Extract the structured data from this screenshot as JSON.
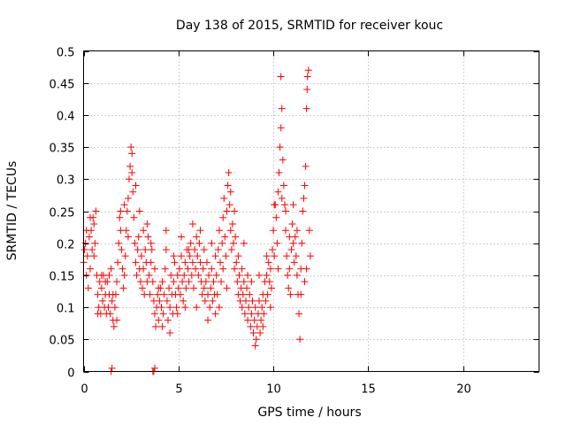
{
  "chart_data": {
    "type": "scatter",
    "title": "Day 138 of 2015, SRMTID for receiver kouc",
    "xlabel": "GPS time / hours",
    "ylabel": "SRMTID / TECUs",
    "xlim": [
      0,
      24
    ],
    "ylim": [
      0,
      0.5
    ],
    "xticks": [
      0,
      5,
      10,
      15,
      20
    ],
    "yticks": [
      0,
      0.05,
      0.1,
      0.15,
      0.2,
      0.25,
      0.3,
      0.35,
      0.4,
      0.45,
      0.5
    ],
    "xtick_labels": [
      "0",
      "5",
      "10",
      "15",
      "20"
    ],
    "ytick_labels": [
      "0",
      "0.05",
      "0.1",
      "0.15",
      "0.2",
      "0.25",
      "0.3",
      "0.35",
      "0.4",
      "0.45",
      "0.5"
    ],
    "grid": true,
    "marker": "+",
    "color": "#ff0000",
    "series": [
      {
        "name": "SRMTID",
        "points": [
          [
            0.0,
            0.17
          ],
          [
            0.05,
            0.19
          ],
          [
            0.1,
            0.2
          ],
          [
            0.15,
            0.15
          ],
          [
            0.2,
            0.18
          ],
          [
            0.25,
            0.13
          ],
          [
            0.3,
            0.21
          ],
          [
            0.35,
            0.16
          ],
          [
            0.4,
            0.22
          ],
          [
            0.45,
            0.19
          ],
          [
            0.5,
            0.24
          ],
          [
            0.55,
            0.18
          ],
          [
            0.6,
            0.2
          ],
          [
            0.65,
            0.25
          ],
          [
            0.7,
            0.15
          ],
          [
            0.75,
            0.12
          ],
          [
            0.8,
            0.1
          ],
          [
            0.85,
            0.14
          ],
          [
            0.9,
            0.09
          ],
          [
            0.95,
            0.13
          ],
          [
            1.0,
            0.11
          ],
          [
            1.05,
            0.15
          ],
          [
            1.1,
            0.1
          ],
          [
            1.15,
            0.12
          ],
          [
            1.2,
            0.09
          ],
          [
            1.25,
            0.14
          ],
          [
            1.3,
            0.1
          ],
          [
            1.35,
            0.12
          ],
          [
            1.4,
            0.09
          ],
          [
            1.45,
            0.16
          ],
          [
            1.5,
            0.11
          ],
          [
            1.55,
            0.08
          ],
          [
            1.6,
            0.07
          ],
          [
            1.65,
            0.1
          ],
          [
            1.7,
            0.12
          ],
          [
            1.75,
            0.14
          ],
          [
            1.8,
            0.17
          ],
          [
            1.85,
            0.2
          ],
          [
            1.9,
            0.24
          ],
          [
            1.95,
            0.22
          ],
          [
            2.0,
            0.19
          ],
          [
            2.05,
            0.16
          ],
          [
            2.1,
            0.13
          ],
          [
            2.15,
            0.15
          ],
          [
            2.2,
            0.18
          ],
          [
            2.25,
            0.22
          ],
          [
            2.3,
            0.25
          ],
          [
            2.35,
            0.27
          ],
          [
            2.4,
            0.3
          ],
          [
            2.45,
            0.32
          ],
          [
            2.5,
            0.35
          ],
          [
            2.55,
            0.31
          ],
          [
            2.6,
            0.28
          ],
          [
            2.65,
            0.24
          ],
          [
            2.7,
            0.2
          ],
          [
            2.75,
            0.17
          ],
          [
            2.8,
            0.15
          ],
          [
            2.85,
            0.19
          ],
          [
            2.9,
            0.21
          ],
          [
            2.95,
            0.16
          ],
          [
            3.0,
            0.14
          ],
          [
            3.05,
            0.18
          ],
          [
            3.1,
            0.13
          ],
          [
            3.15,
            0.16
          ],
          [
            3.2,
            0.12
          ],
          [
            3.25,
            0.19
          ],
          [
            3.3,
            0.17
          ],
          [
            3.35,
            0.14
          ],
          [
            3.4,
            0.21
          ],
          [
            3.45,
            0.15
          ],
          [
            3.5,
            0.12
          ],
          [
            3.55,
            0.17
          ],
          [
            3.6,
            0.19
          ],
          [
            3.65,
            0.14
          ],
          [
            3.7,
            0.11
          ],
          [
            3.75,
            0.09
          ],
          [
            3.8,
            0.07
          ],
          [
            3.85,
            0.1
          ],
          [
            3.9,
            0.12
          ],
          [
            3.95,
            0.08
          ],
          [
            4.0,
            0.11
          ],
          [
            4.05,
            0.13
          ],
          [
            4.1,
            0.1
          ],
          [
            4.15,
            0.14
          ],
          [
            4.2,
            0.09
          ],
          [
            4.25,
            0.12
          ],
          [
            4.3,
            0.16
          ],
          [
            4.35,
            0.19
          ],
          [
            4.4,
            0.11
          ],
          [
            4.45,
            0.08
          ],
          [
            4.5,
            0.13
          ],
          [
            4.55,
            0.1
          ],
          [
            4.6,
            0.15
          ],
          [
            4.65,
            0.12
          ],
          [
            4.7,
            0.09
          ],
          [
            4.75,
            0.14
          ],
          [
            4.8,
            0.17
          ],
          [
            4.85,
            0.12
          ],
          [
            4.9,
            0.1
          ],
          [
            4.95,
            0.15
          ],
          [
            5.0,
            0.13
          ],
          [
            5.05,
            0.16
          ],
          [
            5.1,
            0.12
          ],
          [
            5.15,
            0.18
          ],
          [
            5.2,
            0.14
          ],
          [
            5.25,
            0.11
          ],
          [
            5.3,
            0.15
          ],
          [
            5.35,
            0.17
          ],
          [
            5.4,
            0.13
          ],
          [
            5.45,
            0.19
          ],
          [
            5.5,
            0.16
          ],
          [
            5.55,
            0.14
          ],
          [
            5.6,
            0.18
          ],
          [
            5.65,
            0.2
          ],
          [
            5.7,
            0.15
          ],
          [
            5.75,
            0.17
          ],
          [
            5.8,
            0.13
          ],
          [
            5.85,
            0.19
          ],
          [
            5.9,
            0.16
          ],
          [
            5.95,
            0.21
          ],
          [
            6.0,
            0.18
          ],
          [
            6.05,
            0.15
          ],
          [
            6.1,
            0.2
          ],
          [
            6.15,
            0.17
          ],
          [
            6.2,
            0.14
          ],
          [
            6.25,
            0.12
          ],
          [
            6.3,
            0.16
          ],
          [
            6.35,
            0.13
          ],
          [
            6.4,
            0.11
          ],
          [
            6.45,
            0.14
          ],
          [
            6.5,
            0.17
          ],
          [
            6.55,
            0.12
          ],
          [
            6.6,
            0.15
          ],
          [
            6.65,
            0.1
          ],
          [
            6.7,
            0.13
          ],
          [
            6.75,
            0.16
          ],
          [
            6.8,
            0.11
          ],
          [
            6.85,
            0.14
          ],
          [
            6.9,
            0.12
          ],
          [
            6.95,
            0.18
          ],
          [
            7.0,
            0.15
          ],
          [
            7.05,
            0.12
          ],
          [
            7.1,
            0.19
          ],
          [
            7.15,
            0.22
          ],
          [
            7.2,
            0.17
          ],
          [
            7.25,
            0.14
          ],
          [
            7.3,
            0.2
          ],
          [
            7.35,
            0.24
          ],
          [
            7.4,
            0.27
          ],
          [
            7.45,
            0.21
          ],
          [
            7.5,
            0.18
          ],
          [
            7.55,
            0.25
          ],
          [
            7.6,
            0.29
          ],
          [
            7.65,
            0.31
          ],
          [
            7.7,
            0.26
          ],
          [
            7.75,
            0.22
          ],
          [
            7.8,
            0.19
          ],
          [
            7.85,
            0.23
          ],
          [
            7.9,
            0.2
          ],
          [
            7.95,
            0.25
          ],
          [
            8.0,
            0.21
          ],
          [
            8.05,
            0.17
          ],
          [
            8.1,
            0.14
          ],
          [
            8.15,
            0.12
          ],
          [
            8.2,
            0.15
          ],
          [
            8.25,
            0.11
          ],
          [
            8.3,
            0.13
          ],
          [
            8.35,
            0.1
          ],
          [
            8.4,
            0.12
          ],
          [
            8.45,
            0.14
          ],
          [
            8.5,
            0.09
          ],
          [
            8.55,
            0.11
          ],
          [
            8.6,
            0.13
          ],
          [
            8.65,
            0.08
          ],
          [
            8.7,
            0.1
          ],
          [
            8.75,
            0.12
          ],
          [
            8.8,
            0.07
          ],
          [
            8.85,
            0.09
          ],
          [
            8.9,
            0.11
          ],
          [
            8.95,
            0.06
          ],
          [
            9.0,
            0.08
          ],
          [
            9.05,
            0.1
          ],
          [
            9.1,
            0.05
          ],
          [
            9.15,
            0.07
          ],
          [
            9.2,
            0.09
          ],
          [
            9.25,
            0.11
          ],
          [
            9.3,
            0.06
          ],
          [
            9.35,
            0.08
          ],
          [
            9.4,
            0.1
          ],
          [
            9.45,
            0.12
          ],
          [
            9.5,
            0.09
          ],
          [
            9.55,
            0.14
          ],
          [
            9.6,
            0.11
          ],
          [
            9.65,
            0.15
          ],
          [
            9.7,
            0.12
          ],
          [
            9.75,
            0.17
          ],
          [
            9.8,
            0.14
          ],
          [
            9.85,
            0.1
          ],
          [
            9.9,
            0.13
          ],
          [
            9.95,
            0.19
          ],
          [
            10.0,
            0.22
          ],
          [
            10.05,
            0.18
          ],
          [
            10.1,
            0.26
          ],
          [
            10.15,
            0.24
          ],
          [
            10.2,
            0.2
          ],
          [
            10.25,
            0.28
          ],
          [
            10.3,
            0.31
          ],
          [
            10.35,
            0.35
          ],
          [
            10.4,
            0.38
          ],
          [
            10.45,
            0.41
          ],
          [
            10.5,
            0.33
          ],
          [
            10.55,
            0.29
          ],
          [
            10.6,
            0.26
          ],
          [
            10.65,
            0.22
          ],
          [
            10.7,
            0.18
          ],
          [
            10.75,
            0.15
          ],
          [
            10.8,
            0.13
          ],
          [
            10.85,
            0.16
          ],
          [
            10.9,
            0.12
          ],
          [
            10.95,
            0.19
          ],
          [
            11.0,
            0.23
          ],
          [
            11.05,
            0.2
          ],
          [
            11.1,
            0.17
          ],
          [
            11.15,
            0.21
          ],
          [
            11.2,
            0.18
          ],
          [
            11.25,
            0.15
          ],
          [
            11.3,
            0.12
          ],
          [
            11.35,
            0.09
          ],
          [
            11.4,
            0.05
          ],
          [
            11.45,
            0.16
          ],
          [
            11.5,
            0.2
          ],
          [
            11.55,
            0.25
          ],
          [
            11.6,
            0.27
          ],
          [
            11.65,
            0.29
          ],
          [
            11.7,
            0.32
          ],
          [
            11.75,
            0.41
          ],
          [
            11.8,
            0.46
          ],
          [
            11.85,
            0.47
          ],
          [
            11.9,
            0.22
          ],
          [
            11.95,
            0.18
          ],
          [
            0.15,
            0.22
          ],
          [
            0.35,
            0.24
          ],
          [
            0.55,
            0.23
          ],
          [
            0.75,
            0.09
          ],
          [
            0.95,
            0.15
          ],
          [
            1.15,
            0.14
          ],
          [
            1.35,
            0.15
          ],
          [
            1.55,
            0.12
          ],
          [
            1.75,
            0.08
          ],
          [
            1.95,
            0.25
          ],
          [
            2.15,
            0.26
          ],
          [
            2.35,
            0.21
          ],
          [
            2.55,
            0.34
          ],
          [
            2.75,
            0.29
          ],
          [
            2.95,
            0.25
          ],
          [
            3.15,
            0.22
          ],
          [
            3.35,
            0.23
          ],
          [
            3.55,
            0.2
          ],
          [
            3.75,
            0.16
          ],
          [
            3.95,
            0.13
          ],
          [
            4.15,
            0.07
          ],
          [
            4.35,
            0.22
          ],
          [
            4.55,
            0.06
          ],
          [
            4.75,
            0.18
          ],
          [
            4.95,
            0.09
          ],
          [
            5.15,
            0.21
          ],
          [
            5.35,
            0.1
          ],
          [
            5.55,
            0.19
          ],
          [
            5.75,
            0.23
          ],
          [
            5.95,
            0.1
          ],
          [
            6.15,
            0.22
          ],
          [
            6.35,
            0.19
          ],
          [
            6.55,
            0.08
          ],
          [
            6.75,
            0.2
          ],
          [
            6.95,
            0.09
          ],
          [
            7.15,
            0.1
          ],
          [
            7.35,
            0.16
          ],
          [
            7.55,
            0.13
          ],
          [
            7.75,
            0.28
          ],
          [
            7.95,
            0.16
          ],
          [
            8.15,
            0.18
          ],
          [
            8.35,
            0.16
          ],
          [
            8.45,
            0.2
          ],
          [
            8.65,
            0.15
          ],
          [
            8.85,
            0.14
          ],
          [
            9.05,
            0.04
          ],
          [
            9.25,
            0.15
          ],
          [
            9.45,
            0.07
          ],
          [
            9.65,
            0.18
          ],
          [
            9.85,
            0.16
          ],
          [
            10.05,
            0.26
          ],
          [
            10.25,
            0.16
          ],
          [
            10.45,
            0.27
          ],
          [
            10.65,
            0.25
          ],
          [
            10.85,
            0.21
          ],
          [
            11.05,
            0.26
          ],
          [
            11.25,
            0.22
          ],
          [
            11.45,
            0.12
          ],
          [
            11.65,
            0.14
          ],
          [
            11.75,
            0.16
          ],
          [
            1.45,
            0.0
          ],
          [
            3.65,
            0.0
          ],
          [
            3.7,
            0.0
          ],
          [
            3.75,
            0.005
          ],
          [
            1.5,
            0.005
          ],
          [
            10.4,
            0.46
          ],
          [
            11.78,
            0.44
          ]
        ]
      }
    ]
  }
}
